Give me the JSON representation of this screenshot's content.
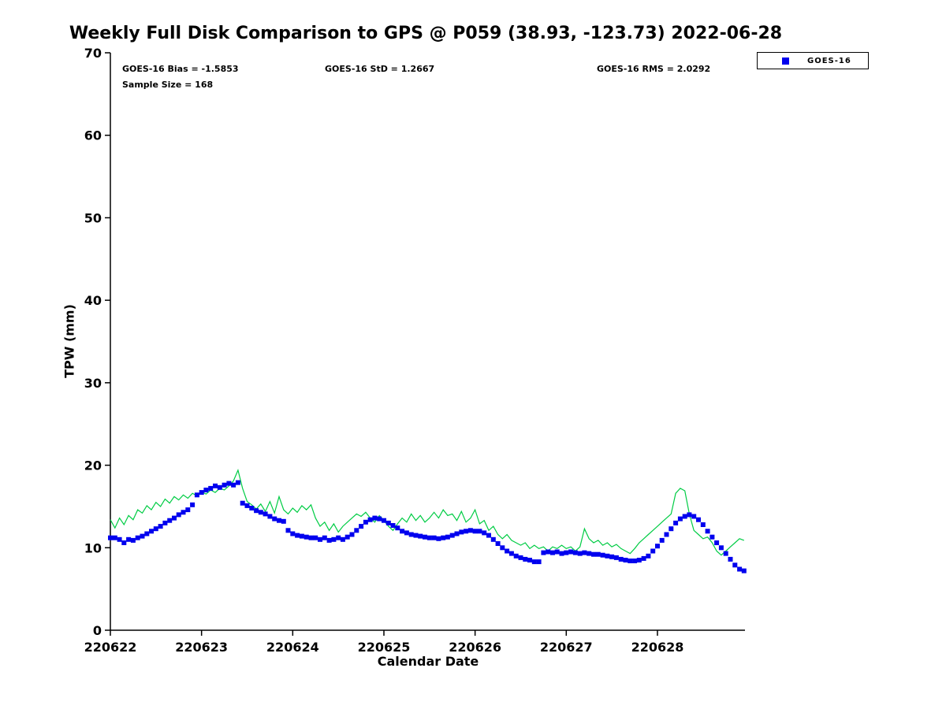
{
  "title": "Weekly Full Disk Comparison to GPS @ P059 (38.93, -123.73) 2022-06-28",
  "annotations": {
    "bias": "GOES-16 Bias = -1.5853",
    "std": "GOES-16 StD = 1.2667",
    "rms": "GOES-16 RMS = 2.0292",
    "sample": "Sample Size = 168"
  },
  "legend": {
    "items": [
      {
        "label": "GOES-16",
        "marker": "square",
        "marker_color": "#0000ee"
      }
    ]
  },
  "chart_data": {
    "type": "line",
    "title": "Weekly Full Disk Comparison to GPS @ P059 (38.93, -123.73) 2022-06-28",
    "xlabel": "Calendar Date",
    "ylabel": "TPW (mm)",
    "xlim": [
      0,
      6.96
    ],
    "ylim": [
      0,
      70
    ],
    "grid": false,
    "legend_position": "top-right-outside",
    "x_unit_note": "x in days since 220622",
    "x_ticks": {
      "positions": [
        0,
        1,
        2,
        3,
        4,
        5,
        6
      ],
      "labels": [
        "220622",
        "220623",
        "220624",
        "220625",
        "220626",
        "220627",
        "220628"
      ]
    },
    "y_ticks": {
      "positions": [
        0,
        10,
        20,
        30,
        40,
        50,
        60,
        70
      ],
      "labels": [
        "0",
        "10",
        "20",
        "30",
        "40",
        "50",
        "60",
        "70"
      ]
    },
    "series": [
      {
        "name": "GPS",
        "type": "line",
        "color": "#00cc44",
        "line_width": 1.2,
        "x_start": 0,
        "x_step": 0.05,
        "values": [
          13.4,
          12.4,
          13.6,
          12.8,
          13.9,
          13.4,
          14.6,
          14.2,
          15.1,
          14.6,
          15.5,
          15.0,
          15.9,
          15.4,
          16.2,
          15.8,
          16.4,
          16.0,
          16.6,
          16.3,
          16.8,
          16.5,
          17.0,
          16.7,
          17.2,
          17.0,
          17.5,
          18.1,
          19.4,
          17.2,
          15.6,
          15.2,
          14.7,
          15.3,
          14.4,
          15.6,
          14.2,
          16.2,
          14.6,
          14.1,
          14.8,
          14.3,
          15.1,
          14.6,
          15.2,
          13.6,
          12.6,
          13.1,
          12.1,
          12.9,
          11.9,
          12.6,
          13.1,
          13.6,
          14.1,
          13.8,
          14.3,
          13.6,
          13.1,
          13.9,
          13.3,
          12.6,
          12.1,
          12.9,
          13.6,
          13.1,
          14.1,
          13.3,
          13.9,
          13.1,
          13.6,
          14.3,
          13.6,
          14.6,
          13.9,
          14.1,
          13.3,
          14.4,
          13.1,
          13.6,
          14.6,
          12.9,
          13.3,
          12.1,
          12.6,
          11.6,
          11.1,
          11.6,
          10.9,
          10.6,
          10.3,
          10.6,
          9.9,
          10.3,
          9.9,
          10.1,
          9.6,
          10.1,
          9.9,
          10.3,
          9.9,
          10.1,
          9.6,
          10.1,
          12.3,
          11.1,
          10.6,
          10.9,
          10.3,
          10.6,
          10.1,
          10.4,
          9.9,
          9.6,
          9.3,
          9.9,
          10.6,
          11.1,
          11.6,
          12.1,
          12.6,
          13.1,
          13.6,
          14.1,
          16.6,
          17.2,
          16.9,
          14.1,
          12.1,
          11.6,
          11.1,
          11.3,
          10.6,
          9.6,
          9.1,
          9.6,
          10.1,
          10.6,
          11.1,
          10.9
        ]
      },
      {
        "name": "GOES-16",
        "type": "scatter-square",
        "color": "#0000ee",
        "marker_size": 6,
        "x_start": 0,
        "x_step": 0.05,
        "values": [
          11.2,
          11.2,
          11.0,
          10.6,
          11.0,
          10.9,
          11.2,
          11.4,
          11.7,
          12.0,
          12.3,
          12.6,
          13.0,
          13.3,
          13.6,
          14.0,
          14.3,
          14.6,
          15.2,
          16.4,
          16.7,
          17.0,
          17.2,
          17.5,
          17.3,
          17.6,
          17.8,
          17.6,
          17.9,
          15.4,
          15.1,
          14.8,
          14.5,
          14.3,
          14.1,
          13.8,
          13.5,
          13.3,
          13.2,
          12.1,
          11.7,
          11.5,
          11.4,
          11.3,
          11.2,
          11.2,
          11.0,
          11.2,
          10.9,
          11.0,
          11.2,
          11.0,
          11.3,
          11.6,
          12.1,
          12.6,
          13.1,
          13.4,
          13.6,
          13.5,
          13.3,
          13.0,
          12.7,
          12.4,
          12.0,
          11.8,
          11.6,
          11.5,
          11.4,
          11.3,
          11.2,
          11.2,
          11.1,
          11.2,
          11.3,
          11.5,
          11.7,
          11.9,
          12.0,
          12.1,
          12.0,
          12.0,
          11.8,
          11.5,
          11.0,
          10.5,
          10.0,
          9.6,
          9.3,
          9.0,
          8.8,
          8.6,
          8.5,
          8.3,
          8.3,
          9.4,
          9.5,
          9.4,
          9.5,
          9.3,
          9.4,
          9.5,
          9.4,
          9.3,
          9.4,
          9.3,
          9.2,
          9.2,
          9.1,
          9.0,
          8.9,
          8.8,
          8.6,
          8.5,
          8.4,
          8.4,
          8.5,
          8.7,
          9.0,
          9.6,
          10.2,
          10.9,
          11.6,
          12.3,
          13.0,
          13.5,
          13.8,
          14.0,
          13.8,
          13.4,
          12.8,
          12.0,
          11.3,
          10.6,
          10.0,
          9.3,
          8.6,
          7.9,
          7.4,
          7.2
        ]
      }
    ]
  }
}
